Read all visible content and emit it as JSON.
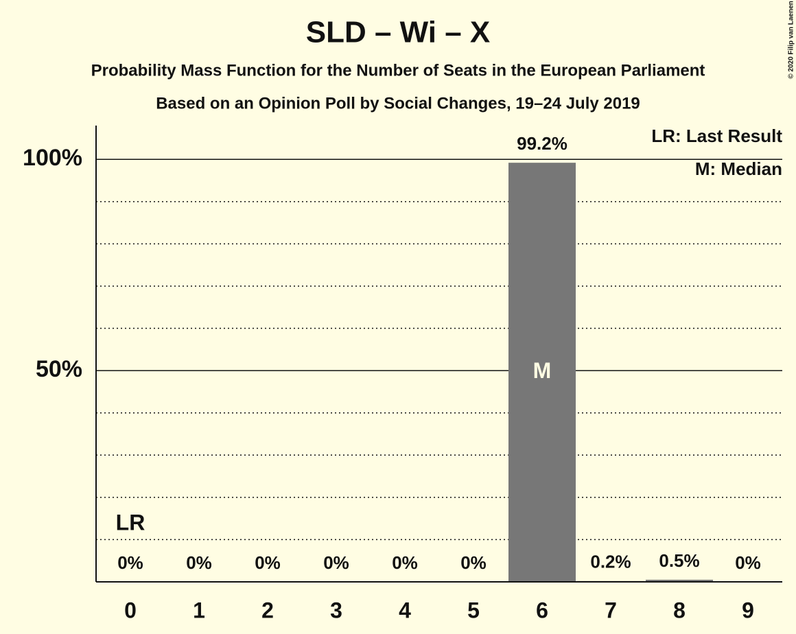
{
  "chart_data": {
    "type": "bar",
    "title": "SLD – Wi – X",
    "subtitle": "Probability Mass Function for the Number of Seats in the European Parliament",
    "subtitle2": "Based on an Opinion Poll by Social Changes, 19–24 July 2019",
    "credit": "© 2020 Filip van Laenen",
    "categories": [
      0,
      1,
      2,
      3,
      4,
      5,
      6,
      7,
      8,
      9
    ],
    "values": [
      0,
      0,
      0,
      0,
      0,
      0,
      99.2,
      0.2,
      0.5,
      0
    ],
    "value_labels": [
      "0%",
      "0%",
      "0%",
      "0%",
      "0%",
      "0%",
      "99.2%",
      "0.2%",
      "0.5%",
      "0%"
    ],
    "color": "#777777",
    "ylim": [
      0,
      108
    ],
    "yticks": [
      {
        "value": 50,
        "label": "50%"
      },
      {
        "value": 100,
        "label": "100%"
      }
    ],
    "minor_yticks": [
      10,
      20,
      30,
      40,
      60,
      70,
      80,
      90
    ],
    "grid": true,
    "last_result": {
      "seats": 0,
      "label": "LR",
      "legend": "LR: Last Result"
    },
    "median": {
      "seats": 6,
      "label": "M",
      "legend": "M: Median"
    }
  }
}
